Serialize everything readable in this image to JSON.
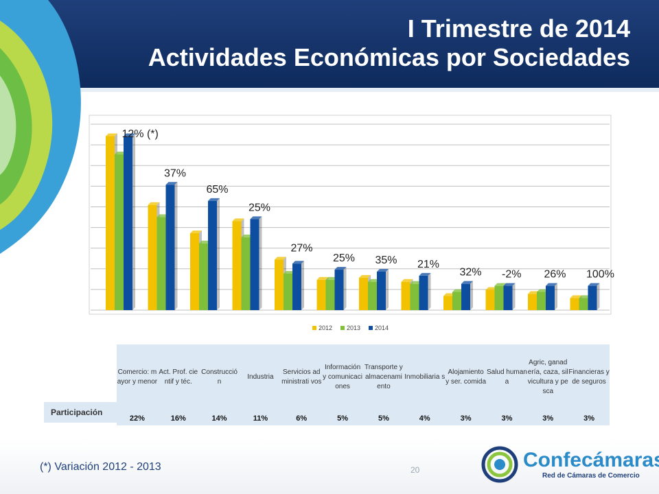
{
  "header": {
    "title_line1": "I Trimestre  de  2014",
    "title_line2": "Actividades Económicas por Sociedades"
  },
  "chart_data": {
    "type": "bar",
    "categories": [
      "Comercio: mayor y menor",
      "Act. Prof. cientif y téc.",
      "Construcción",
      "Industria",
      "Servicios administrativos",
      "Información y comunicaciones",
      "Transporte y almacenamiento",
      "Inmobiliarias",
      "Alojamiento y ser. comida",
      "Salud humana",
      "Agric, ganadería, caza, silvicultura y pesca",
      "Financieras y de seguros"
    ],
    "series": [
      {
        "name": "2012",
        "color": "#f2c200",
        "values": [
          86,
          52,
          38,
          44,
          25,
          15,
          16,
          14,
          7,
          10,
          8,
          6
        ]
      },
      {
        "name": "2013",
        "color": "#7fbf3a",
        "values": [
          77,
          46,
          33,
          36,
          18,
          15,
          14,
          13,
          9,
          12,
          9,
          6
        ]
      },
      {
        "name": "2014",
        "color": "#0e4ea0",
        "values": [
          86,
          62,
          54,
          45,
          23,
          20,
          19,
          17,
          13,
          12,
          12,
          12
        ]
      }
    ],
    "variation_labels": [
      "12% (*)",
      "37%",
      "65%",
      "25%",
      "27%",
      "25%",
      "35%",
      "21%",
      "32%",
      "-2%",
      "26%",
      "100%"
    ],
    "ylim": [
      0,
      95
    ],
    "grid": true,
    "legend": "bottom"
  },
  "table": {
    "row_label": "Participación",
    "headers": [
      "Comercio: mayor y menor",
      "Act. Prof. cientif y téc.",
      "Construcció n",
      "Industria",
      "Servicios administrati vos",
      "Información y comunicaci ones",
      "Transporte y almacenami ento",
      "Inmobiliaria s",
      "Alojamiento y ser. comida",
      "Salud humana",
      "Agric, ganadería, caza, silvicultura y pesca",
      "Financieras y de seguros"
    ],
    "values": [
      "22%",
      "16%",
      "14%",
      "11%",
      "6%",
      "5%",
      "5%",
      "4%",
      "3%",
      "3%",
      "3%",
      "3%"
    ]
  },
  "footer": {
    "footnote": "(*) Variación 2012 - 2013",
    "page_number": "20",
    "logo_text": "Confecámaras",
    "logo_sub": "Red de Cámaras de Comercio"
  }
}
